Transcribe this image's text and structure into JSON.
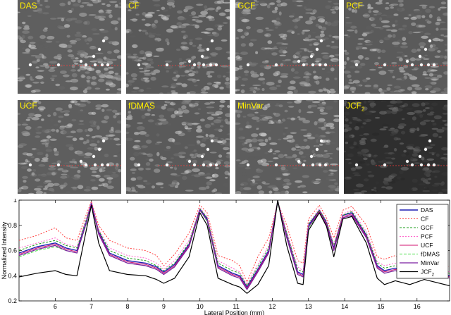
{
  "panels": [
    {
      "label": "DAS",
      "sub": "",
      "tone": "#5f5f5f"
    },
    {
      "label": "CF",
      "sub": "",
      "tone": "#595959"
    },
    {
      "label": "GCF",
      "sub": "",
      "tone": "#5c5c5c"
    },
    {
      "label": "PCF",
      "sub": "",
      "tone": "#5a5a5a"
    },
    {
      "label": "UCF",
      "sub": "",
      "tone": "#5e5e5e"
    },
    {
      "label": "fDMAS",
      "sub": "",
      "tone": "#5a5a5a"
    },
    {
      "label": "MinVar",
      "sub": "",
      "tone": "#5d5d5d"
    },
    {
      "label": "JCF",
      "sub": "2",
      "tone": "#2e2e2e"
    }
  ],
  "colors": {
    "label": "#ffee00",
    "cut_line": "#ff3b3b"
  },
  "chart_data": {
    "type": "line",
    "xlabel": "Lateral Position (mm)",
    "ylabel": "Normalized Intensity",
    "xlim": [
      5,
      16.9
    ],
    "ylim": [
      0.2,
      1.0
    ],
    "xticks": [
      6,
      7,
      8,
      9,
      10,
      11,
      12,
      13,
      14,
      15,
      16
    ],
    "yticks": [
      0.2,
      0.4,
      0.6,
      0.8,
      1
    ],
    "legend_position": "right",
    "x": [
      5.0,
      5.5,
      6.0,
      6.3,
      6.6,
      6.85,
      7.0,
      7.2,
      7.5,
      8.0,
      8.5,
      8.8,
      9.0,
      9.3,
      9.7,
      10.0,
      10.2,
      10.5,
      10.9,
      11.1,
      11.3,
      11.6,
      11.9,
      12.15,
      12.4,
      12.7,
      12.85,
      13.0,
      13.3,
      13.5,
      13.7,
      13.95,
      14.2,
      14.6,
      14.9,
      15.1,
      15.4,
      15.8,
      16.2,
      16.9
    ],
    "series": [
      {
        "name": "DAS",
        "sub": "",
        "color": "#1f1fb4",
        "dash": "",
        "width": 1.4,
        "values": [
          0.58,
          0.63,
          0.66,
          0.62,
          0.6,
          0.82,
          0.98,
          0.75,
          0.58,
          0.52,
          0.5,
          0.47,
          0.43,
          0.49,
          0.65,
          0.93,
          0.85,
          0.48,
          0.42,
          0.4,
          0.31,
          0.45,
          0.6,
          0.99,
          0.72,
          0.43,
          0.41,
          0.8,
          0.92,
          0.82,
          0.62,
          0.88,
          0.9,
          0.72,
          0.48,
          0.44,
          0.46,
          0.42,
          0.46,
          0.4
        ]
      },
      {
        "name": "CF",
        "sub": "",
        "color": "#ff4040",
        "dash": "2,2",
        "width": 1,
        "values": [
          0.68,
          0.72,
          0.78,
          0.7,
          0.68,
          0.88,
          0.99,
          0.8,
          0.68,
          0.62,
          0.6,
          0.56,
          0.48,
          0.57,
          0.74,
          0.96,
          0.9,
          0.56,
          0.52,
          0.48,
          0.35,
          0.55,
          0.7,
          0.98,
          0.8,
          0.52,
          0.5,
          0.85,
          0.96,
          0.86,
          0.7,
          0.92,
          0.95,
          0.8,
          0.55,
          0.53,
          0.56,
          0.5,
          0.52,
          0.47
        ]
      },
      {
        "name": "GCF",
        "sub": "",
        "color": "#1e9c1e",
        "dash": "3,2",
        "width": 1,
        "values": [
          0.6,
          0.65,
          0.68,
          0.64,
          0.62,
          0.84,
          0.97,
          0.76,
          0.6,
          0.54,
          0.52,
          0.48,
          0.44,
          0.5,
          0.66,
          0.93,
          0.86,
          0.5,
          0.44,
          0.42,
          0.32,
          0.47,
          0.62,
          0.99,
          0.74,
          0.45,
          0.43,
          0.81,
          0.92,
          0.83,
          0.64,
          0.88,
          0.91,
          0.73,
          0.5,
          0.46,
          0.48,
          0.44,
          0.47,
          0.42
        ]
      },
      {
        "name": "PCF",
        "sub": "",
        "color": "#ff66cc",
        "dash": "2,2",
        "width": 1,
        "values": [
          0.62,
          0.66,
          0.7,
          0.65,
          0.63,
          0.85,
          0.98,
          0.77,
          0.62,
          0.56,
          0.54,
          0.5,
          0.45,
          0.52,
          0.68,
          0.94,
          0.87,
          0.52,
          0.46,
          0.43,
          0.33,
          0.49,
          0.64,
          0.99,
          0.75,
          0.47,
          0.44,
          0.82,
          0.93,
          0.84,
          0.65,
          0.89,
          0.92,
          0.75,
          0.51,
          0.48,
          0.5,
          0.46,
          0.49,
          0.43
        ]
      },
      {
        "name": "UCF",
        "sub": "",
        "color": "#d01070",
        "dash": "",
        "width": 1,
        "values": [
          0.57,
          0.62,
          0.65,
          0.61,
          0.59,
          0.81,
          0.97,
          0.74,
          0.57,
          0.51,
          0.49,
          0.46,
          0.42,
          0.48,
          0.64,
          0.92,
          0.84,
          0.47,
          0.41,
          0.39,
          0.3,
          0.44,
          0.59,
          0.99,
          0.71,
          0.42,
          0.4,
          0.79,
          0.91,
          0.81,
          0.61,
          0.87,
          0.89,
          0.71,
          0.47,
          0.43,
          0.45,
          0.41,
          0.45,
          0.39
        ]
      },
      {
        "name": "fDMAS",
        "sub": "",
        "color": "#44dd44",
        "dash": "4,2",
        "width": 1,
        "values": [
          0.55,
          0.6,
          0.63,
          0.6,
          0.58,
          0.8,
          0.96,
          0.73,
          0.56,
          0.5,
          0.48,
          0.45,
          0.41,
          0.47,
          0.63,
          0.92,
          0.83,
          0.46,
          0.4,
          0.38,
          0.29,
          0.43,
          0.58,
          0.98,
          0.7,
          0.41,
          0.39,
          0.78,
          0.9,
          0.8,
          0.6,
          0.86,
          0.88,
          0.7,
          0.46,
          0.42,
          0.44,
          0.4,
          0.44,
          0.38
        ]
      },
      {
        "name": "MinVar",
        "sub": "",
        "color": "#7a1fa0",
        "dash": "",
        "width": 1.2,
        "values": [
          0.56,
          0.61,
          0.64,
          0.6,
          0.58,
          0.81,
          0.97,
          0.73,
          0.56,
          0.5,
          0.48,
          0.45,
          0.41,
          0.47,
          0.63,
          0.92,
          0.84,
          0.46,
          0.4,
          0.38,
          0.29,
          0.43,
          0.58,
          0.99,
          0.7,
          0.41,
          0.39,
          0.79,
          0.9,
          0.8,
          0.6,
          0.86,
          0.88,
          0.7,
          0.46,
          0.42,
          0.44,
          0.4,
          0.44,
          0.38
        ]
      },
      {
        "name": "JCF",
        "sub": "2",
        "color": "#000000",
        "dash": "",
        "width": 1.2,
        "values": [
          0.39,
          0.42,
          0.44,
          0.41,
          0.4,
          0.75,
          0.96,
          0.66,
          0.44,
          0.41,
          0.4,
          0.37,
          0.34,
          0.38,
          0.55,
          0.9,
          0.8,
          0.38,
          0.33,
          0.31,
          0.26,
          0.33,
          0.48,
          1.0,
          0.64,
          0.34,
          0.33,
          0.76,
          0.9,
          0.79,
          0.55,
          0.85,
          0.87,
          0.66,
          0.38,
          0.33,
          0.36,
          0.33,
          0.37,
          0.32
        ]
      }
    ]
  }
}
